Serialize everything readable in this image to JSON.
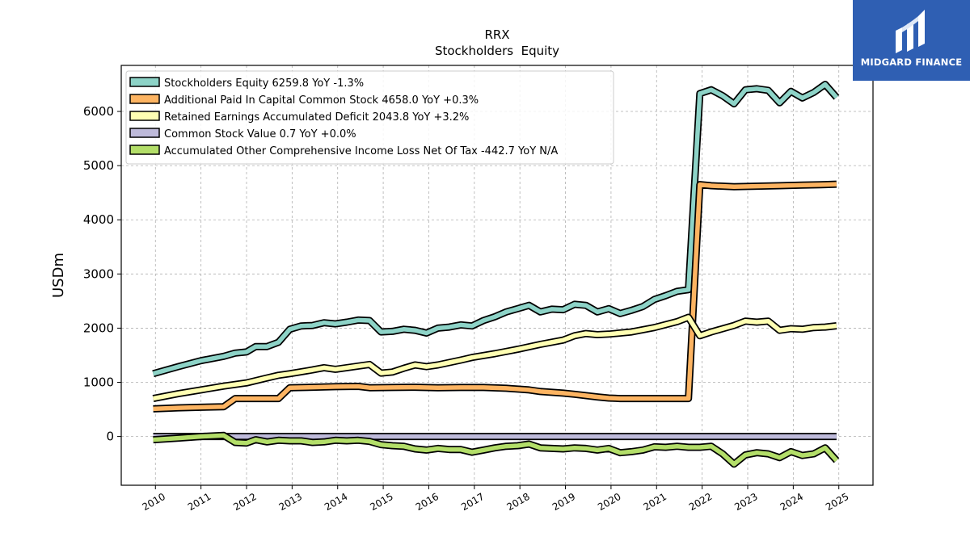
{
  "brand": {
    "name": "MIDGARD FINANCE",
    "icon": "midgard-logo-icon",
    "color": "#2f5fb3"
  },
  "chart_data": {
    "type": "line",
    "title": "RRX",
    "subtitle": "Stockholders  Equity",
    "xlabel": "",
    "ylabel": "USDm",
    "ylim": [
      -900,
      6850
    ],
    "xlim": [
      2009.25,
      2025.75
    ],
    "grid": true,
    "legend_position": "top-left",
    "x_ticks": [
      "2010",
      "2011",
      "2012",
      "2013",
      "2014",
      "2015",
      "2016",
      "2017",
      "2018",
      "2019",
      "2020",
      "2021",
      "2022",
      "2023",
      "2024",
      "2025"
    ],
    "y_ticks": [
      0,
      1000,
      2000,
      3000,
      4000,
      5000,
      6000
    ],
    "series": [
      {
        "name": "Stockholders Equity  6259.8 YoY -1.3%",
        "color": "#8dd3c7",
        "points": [
          [
            2009.95,
            1160
          ],
          [
            2010.5,
            1290
          ],
          [
            2011.0,
            1400
          ],
          [
            2011.5,
            1480
          ],
          [
            2011.75,
            1540
          ],
          [
            2012.0,
            1560
          ],
          [
            2012.2,
            1660
          ],
          [
            2012.45,
            1660
          ],
          [
            2012.7,
            1740
          ],
          [
            2012.95,
            1980
          ],
          [
            2013.2,
            2040
          ],
          [
            2013.45,
            2050
          ],
          [
            2013.7,
            2100
          ],
          [
            2013.95,
            2080
          ],
          [
            2014.2,
            2110
          ],
          [
            2014.45,
            2150
          ],
          [
            2014.7,
            2140
          ],
          [
            2014.95,
            1930
          ],
          [
            2015.2,
            1940
          ],
          [
            2015.45,
            1980
          ],
          [
            2015.7,
            1960
          ],
          [
            2015.95,
            1910
          ],
          [
            2016.2,
            2000
          ],
          [
            2016.45,
            2020
          ],
          [
            2016.7,
            2060
          ],
          [
            2016.95,
            2040
          ],
          [
            2017.2,
            2140
          ],
          [
            2017.45,
            2210
          ],
          [
            2017.7,
            2300
          ],
          [
            2017.95,
            2360
          ],
          [
            2018.2,
            2420
          ],
          [
            2018.45,
            2300
          ],
          [
            2018.7,
            2350
          ],
          [
            2018.95,
            2340
          ],
          [
            2019.2,
            2440
          ],
          [
            2019.45,
            2420
          ],
          [
            2019.7,
            2300
          ],
          [
            2019.95,
            2360
          ],
          [
            2020.2,
            2270
          ],
          [
            2020.45,
            2330
          ],
          [
            2020.7,
            2400
          ],
          [
            2020.95,
            2530
          ],
          [
            2021.2,
            2600
          ],
          [
            2021.45,
            2680
          ],
          [
            2021.7,
            2710
          ],
          [
            2021.95,
            6330
          ],
          [
            2022.2,
            6400
          ],
          [
            2022.45,
            6290
          ],
          [
            2022.7,
            6140
          ],
          [
            2022.95,
            6400
          ],
          [
            2023.2,
            6420
          ],
          [
            2023.45,
            6390
          ],
          [
            2023.7,
            6160
          ],
          [
            2023.95,
            6370
          ],
          [
            2024.2,
            6250
          ],
          [
            2024.45,
            6350
          ],
          [
            2024.7,
            6500
          ],
          [
            2024.95,
            6259.8
          ]
        ]
      },
      {
        "name": "Additional Paid In Capital Common Stock  4658.0 YoY +0.3%",
        "color": "#fdb462",
        "points": [
          [
            2009.95,
            510
          ],
          [
            2010.5,
            530
          ],
          [
            2011.0,
            540
          ],
          [
            2011.5,
            550
          ],
          [
            2011.75,
            700
          ],
          [
            2012.45,
            700
          ],
          [
            2012.7,
            700
          ],
          [
            2012.95,
            900
          ],
          [
            2013.45,
            910
          ],
          [
            2013.95,
            920
          ],
          [
            2014.45,
            925
          ],
          [
            2014.7,
            900
          ],
          [
            2015.2,
            905
          ],
          [
            2015.7,
            910
          ],
          [
            2016.2,
            900
          ],
          [
            2016.7,
            905
          ],
          [
            2017.2,
            905
          ],
          [
            2017.7,
            890
          ],
          [
            2018.2,
            860
          ],
          [
            2018.45,
            830
          ],
          [
            2018.95,
            800
          ],
          [
            2019.2,
            780
          ],
          [
            2019.7,
            730
          ],
          [
            2019.95,
            710
          ],
          [
            2020.2,
            700
          ],
          [
            2020.7,
            700
          ],
          [
            2021.2,
            700
          ],
          [
            2021.7,
            700
          ],
          [
            2021.95,
            4650
          ],
          [
            2022.2,
            4630
          ],
          [
            2022.7,
            4610
          ],
          [
            2023.2,
            4620
          ],
          [
            2023.7,
            4630
          ],
          [
            2024.2,
            4640
          ],
          [
            2024.7,
            4650
          ],
          [
            2024.95,
            4658.0
          ]
        ]
      },
      {
        "name": "Retained Earnings Accumulated Deficit  2043.8 YoY +3.2%",
        "color": "#ffffb3",
        "points": [
          [
            2009.95,
            700
          ],
          [
            2010.5,
            790
          ],
          [
            2011.0,
            860
          ],
          [
            2011.5,
            930
          ],
          [
            2011.75,
            960
          ],
          [
            2012.0,
            990
          ],
          [
            2012.45,
            1080
          ],
          [
            2012.7,
            1130
          ],
          [
            2012.95,
            1160
          ],
          [
            2013.45,
            1230
          ],
          [
            2013.7,
            1270
          ],
          [
            2013.95,
            1240
          ],
          [
            2014.2,
            1270
          ],
          [
            2014.7,
            1330
          ],
          [
            2014.95,
            1170
          ],
          [
            2015.2,
            1190
          ],
          [
            2015.45,
            1260
          ],
          [
            2015.7,
            1320
          ],
          [
            2015.95,
            1290
          ],
          [
            2016.2,
            1320
          ],
          [
            2016.7,
            1410
          ],
          [
            2016.95,
            1460
          ],
          [
            2017.45,
            1530
          ],
          [
            2017.95,
            1610
          ],
          [
            2018.45,
            1700
          ],
          [
            2018.95,
            1780
          ],
          [
            2019.2,
            1860
          ],
          [
            2019.45,
            1900
          ],
          [
            2019.7,
            1880
          ],
          [
            2019.95,
            1890
          ],
          [
            2020.45,
            1930
          ],
          [
            2020.95,
            2010
          ],
          [
            2021.45,
            2120
          ],
          [
            2021.7,
            2200
          ],
          [
            2021.95,
            1860
          ],
          [
            2022.2,
            1930
          ],
          [
            2022.45,
            1990
          ],
          [
            2022.7,
            2050
          ],
          [
            2022.95,
            2130
          ],
          [
            2023.2,
            2110
          ],
          [
            2023.45,
            2130
          ],
          [
            2023.7,
            1960
          ],
          [
            2023.95,
            1990
          ],
          [
            2024.2,
            1980
          ],
          [
            2024.45,
            2010
          ],
          [
            2024.7,
            2020
          ],
          [
            2024.95,
            2043.8
          ]
        ]
      },
      {
        "name": "Common Stock Value  0.7 YoY +0.0%",
        "color": "#bebada",
        "points": [
          [
            2009.95,
            0.7
          ],
          [
            2024.95,
            0.7
          ]
        ]
      },
      {
        "name": "Accumulated Other Comprehensive Income Loss Net Of Tax  -442.7 YoY N/A",
        "color": "#b3de69",
        "points": [
          [
            2009.95,
            -60
          ],
          [
            2010.5,
            -30
          ],
          [
            2011.0,
            0
          ],
          [
            2011.5,
            20
          ],
          [
            2011.75,
            -110
          ],
          [
            2012.0,
            -120
          ],
          [
            2012.2,
            -60
          ],
          [
            2012.45,
            -100
          ],
          [
            2012.7,
            -70
          ],
          [
            2012.95,
            -80
          ],
          [
            2013.2,
            -80
          ],
          [
            2013.45,
            -110
          ],
          [
            2013.7,
            -100
          ],
          [
            2013.95,
            -70
          ],
          [
            2014.2,
            -80
          ],
          [
            2014.45,
            -70
          ],
          [
            2014.7,
            -90
          ],
          [
            2014.95,
            -150
          ],
          [
            2015.2,
            -170
          ],
          [
            2015.45,
            -180
          ],
          [
            2015.7,
            -230
          ],
          [
            2015.95,
            -250
          ],
          [
            2016.2,
            -220
          ],
          [
            2016.45,
            -240
          ],
          [
            2016.7,
            -240
          ],
          [
            2016.95,
            -290
          ],
          [
            2017.2,
            -250
          ],
          [
            2017.45,
            -210
          ],
          [
            2017.7,
            -180
          ],
          [
            2017.95,
            -170
          ],
          [
            2018.2,
            -140
          ],
          [
            2018.45,
            -210
          ],
          [
            2018.7,
            -220
          ],
          [
            2018.95,
            -230
          ],
          [
            2019.2,
            -210
          ],
          [
            2019.45,
            -220
          ],
          [
            2019.7,
            -250
          ],
          [
            2019.95,
            -220
          ],
          [
            2020.2,
            -300
          ],
          [
            2020.45,
            -280
          ],
          [
            2020.7,
            -250
          ],
          [
            2020.95,
            -190
          ],
          [
            2021.2,
            -200
          ],
          [
            2021.45,
            -180
          ],
          [
            2021.7,
            -200
          ],
          [
            2021.95,
            -200
          ],
          [
            2022.2,
            -180
          ],
          [
            2022.45,
            -320
          ],
          [
            2022.7,
            -510
          ],
          [
            2022.95,
            -340
          ],
          [
            2023.2,
            -300
          ],
          [
            2023.45,
            -320
          ],
          [
            2023.7,
            -390
          ],
          [
            2023.95,
            -280
          ],
          [
            2024.2,
            -350
          ],
          [
            2024.45,
            -320
          ],
          [
            2024.7,
            -210
          ],
          [
            2024.95,
            -442.7
          ]
        ]
      }
    ]
  }
}
